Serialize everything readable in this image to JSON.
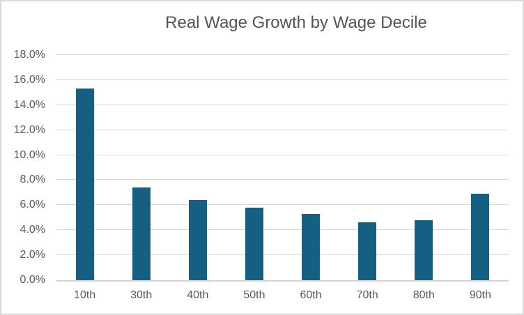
{
  "chart_data": {
    "type": "bar",
    "title": "Real Wage Growth by Wage Decile",
    "xlabel": "",
    "ylabel": "",
    "categories": [
      "10th",
      "30th",
      "40th",
      "50th",
      "60th",
      "70th",
      "80th",
      "90th"
    ],
    "values": [
      15.3,
      7.4,
      6.4,
      5.8,
      5.3,
      4.6,
      4.8,
      6.9
    ],
    "value_format": "percent",
    "ylim": [
      0,
      18
    ],
    "ytick_step": 2,
    "yticks": [
      {
        "value": 0,
        "label": "0.0%"
      },
      {
        "value": 2,
        "label": "2.0%"
      },
      {
        "value": 4,
        "label": "4.0%"
      },
      {
        "value": 6,
        "label": "6.0%"
      },
      {
        "value": 8,
        "label": "8.0%"
      },
      {
        "value": 10,
        "label": "10.0%"
      },
      {
        "value": 12,
        "label": "12.0%"
      },
      {
        "value": 14,
        "label": "14.0%"
      },
      {
        "value": 16,
        "label": "16.0%"
      },
      {
        "value": 18,
        "label": "18.0%"
      }
    ],
    "grid": "horizontal",
    "legend": "none",
    "colors": {
      "bar": "#156082",
      "gridline": "#D9D9D9",
      "axis_line": "#D3D3D3",
      "title_text": "#545454",
      "tick_text": "#595959",
      "background": "#FFFFFF",
      "border": "#D9D9D9"
    }
  }
}
